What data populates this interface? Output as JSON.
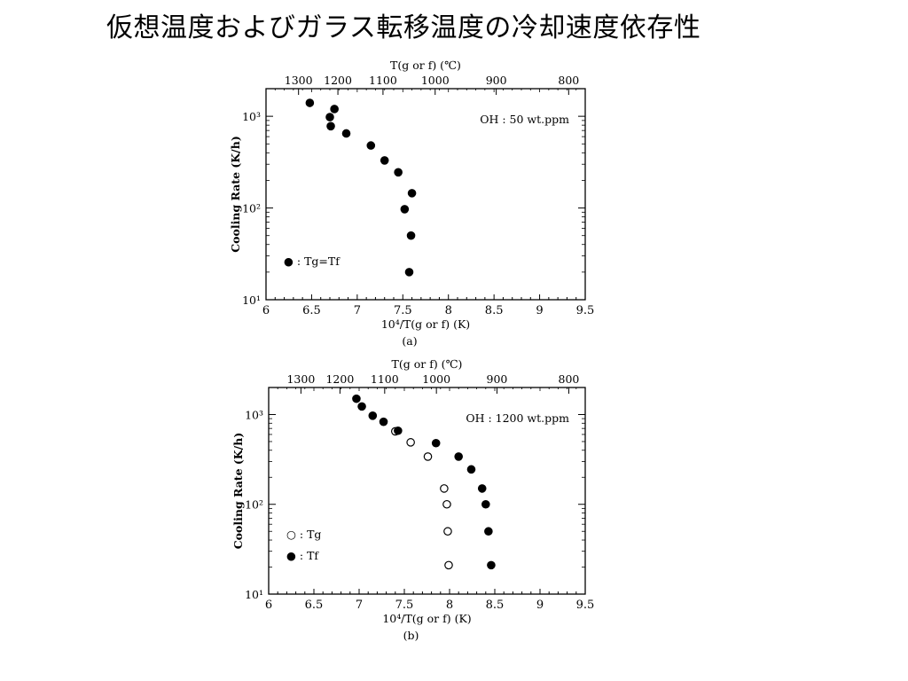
{
  "slide_title": "仮想温度およびガラス転移温度の冷却速度依存性",
  "chart_data": [
    {
      "type": "scatter",
      "panel_label": "(a)",
      "annotation": "OH : 50 wt.ppm",
      "xlabel": "10⁴/T(g or f) (K)",
      "top_axis_label": "T(g or f) (℃)",
      "ylabel": "Cooling Rate (K/h)",
      "xlim": [
        6,
        9.5
      ],
      "ylim": [
        10,
        2000
      ],
      "yscale": "log",
      "x_ticks": [
        "6",
        "6.5",
        "7",
        "7.5",
        "8",
        "8.5",
        "9",
        "9.5"
      ],
      "y_ticks": [
        "10¹",
        "10²",
        "10³"
      ],
      "top_ticks": [
        "1300",
        "1200",
        "1100",
        "1000",
        "900",
        "800"
      ],
      "legend_position": "bottom-left",
      "series": [
        {
          "name": "● : Tg=Tf",
          "marker": "filled-circle",
          "points": [
            [
              6.48,
              1400
            ],
            [
              6.75,
              1200
            ],
            [
              6.7,
              980
            ],
            [
              6.71,
              780
            ],
            [
              6.88,
              650
            ],
            [
              7.15,
              480
            ],
            [
              7.3,
              330
            ],
            [
              7.45,
              245
            ],
            [
              7.6,
              145
            ],
            [
              7.52,
              97
            ],
            [
              7.59,
              50
            ],
            [
              7.57,
              20
            ]
          ]
        }
      ]
    },
    {
      "type": "scatter",
      "panel_label": "(b)",
      "annotation": "OH : 1200 wt.ppm",
      "xlabel": "10⁴/T(g or f) (K)",
      "top_axis_label": "T(g or f) (℃)",
      "ylabel": "Cooling Rate (K/h)",
      "xlim": [
        6,
        9.5
      ],
      "ylim": [
        10,
        2000
      ],
      "yscale": "log",
      "x_ticks": [
        "6",
        "6.5",
        "7",
        "7.5",
        "8",
        "8.5",
        "9",
        "9.5"
      ],
      "y_ticks": [
        "10¹",
        "10²",
        "10³"
      ],
      "top_ticks": [
        "1300",
        "1200",
        "1100",
        "1000",
        "900",
        "800"
      ],
      "legend_position": "bottom-left",
      "series": [
        {
          "name": "○ : Tg",
          "marker": "open-circle",
          "points": [
            [
              7.4,
              650
            ],
            [
              7.57,
              490
            ],
            [
              7.76,
              340
            ],
            [
              7.94,
              150
            ],
            [
              7.97,
              100
            ],
            [
              7.98,
              50
            ],
            [
              7.99,
              21
            ]
          ]
        },
        {
          "name": "● : Tf",
          "marker": "filled-circle",
          "points": [
            [
              6.97,
              1500
            ],
            [
              7.03,
              1230
            ],
            [
              7.15,
              970
            ],
            [
              7.27,
              830
            ],
            [
              7.43,
              660
            ],
            [
              7.85,
              480
            ],
            [
              8.1,
              340
            ],
            [
              8.24,
              245
            ],
            [
              8.36,
              150
            ],
            [
              8.4,
              100
            ],
            [
              8.43,
              50
            ],
            [
              8.46,
              21
            ]
          ]
        }
      ]
    }
  ]
}
